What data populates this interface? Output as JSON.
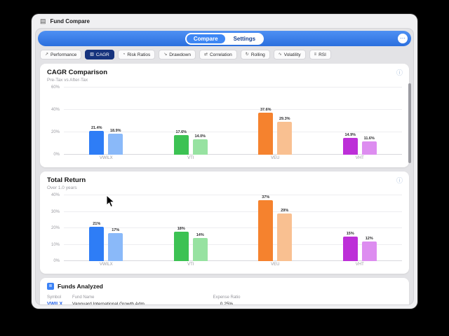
{
  "titlebar": {
    "title": "Fund Compare"
  },
  "header": {
    "tabs": [
      {
        "label": "Compare",
        "active": true
      },
      {
        "label": "Settings",
        "active": false
      }
    ]
  },
  "active_chip": "CAGR",
  "chips": [
    {
      "label": "Performance",
      "icon": "line-chart-icon"
    },
    {
      "label": "CAGR",
      "icon": "bar-chart-icon"
    },
    {
      "label": "Risk Ratios",
      "icon": "gauge-icon"
    },
    {
      "label": "Drawdown",
      "icon": "down-trend-icon"
    },
    {
      "label": "Correlation",
      "icon": "correlation-icon"
    },
    {
      "label": "Rolling",
      "icon": "rolling-icon"
    },
    {
      "label": "Volatility",
      "icon": "volatility-icon"
    },
    {
      "label": "RSI",
      "icon": "rsi-icon"
    }
  ],
  "colors": {
    "accent_blue": "#2b6fde",
    "chip_active": "#16337d"
  },
  "chart_data": [
    {
      "type": "bar",
      "title": "CAGR Comparison",
      "subtitle": "Pre-Tax vs After-Tax",
      "categories": [
        "VWILX",
        "VTI",
        "VEU",
        "VHT"
      ],
      "series": [
        {
          "name": "Pre-Tax",
          "values": [
            21.4,
            17.6,
            37.6,
            14.9
          ]
        },
        {
          "name": "After-Tax",
          "values": [
            18.9,
            14.0,
            29.3,
            11.6
          ]
        }
      ],
      "value_labels": [
        [
          "21.4%",
          "18.9%"
        ],
        [
          "17.6%",
          "14.0%"
        ],
        [
          "37.6%",
          "29.3%"
        ],
        [
          "14.9%",
          "11.6%"
        ]
      ],
      "colors": [
        [
          "#2e7df6",
          "#8ab9f9"
        ],
        [
          "#3cc253",
          "#97e2a1"
        ],
        [
          "#f5822e",
          "#f9c091"
        ],
        [
          "#bd2fd8",
          "#dd8df0"
        ]
      ],
      "ylim": [
        0,
        60
      ],
      "yticks": [
        0,
        20,
        40,
        60
      ],
      "ytick_labels": [
        "0%",
        "20%",
        "40%",
        "60%"
      ],
      "grid": true,
      "legend": false
    },
    {
      "type": "bar",
      "title": "Total Return",
      "subtitle": "Over 1.0 years",
      "categories": [
        "VWILX",
        "VTI",
        "VEU",
        "VHT"
      ],
      "series": [
        {
          "name": "Pre-Tax",
          "values": [
            21,
            18,
            37,
            15
          ]
        },
        {
          "name": "After-Tax",
          "values": [
            17,
            14,
            29,
            12
          ]
        }
      ],
      "value_labels": [
        [
          "21%",
          "17%"
        ],
        [
          "18%",
          "14%"
        ],
        [
          "37%",
          "29%"
        ],
        [
          "15%",
          "12%"
        ]
      ],
      "colors": [
        [
          "#2e7df6",
          "#8ab9f9"
        ],
        [
          "#3cc253",
          "#97e2a1"
        ],
        [
          "#f5822e",
          "#f9c091"
        ],
        [
          "#bd2fd8",
          "#dd8df0"
        ]
      ],
      "ylim": [
        0,
        40
      ],
      "yticks": [
        0,
        10,
        20,
        30,
        40
      ],
      "ytick_labels": [
        "0%",
        "10%",
        "20%",
        "30%",
        "40%"
      ],
      "grid": true,
      "legend": false
    }
  ],
  "funds": {
    "section_title": "Funds Analyzed",
    "columns": [
      "Symbol",
      "Fund Name",
      "Expense Ratio"
    ],
    "rows": [
      {
        "symbol": "VWILX",
        "name": "Vanguard International Growth Adm",
        "expense_ratio": "0.25%"
      }
    ]
  }
}
